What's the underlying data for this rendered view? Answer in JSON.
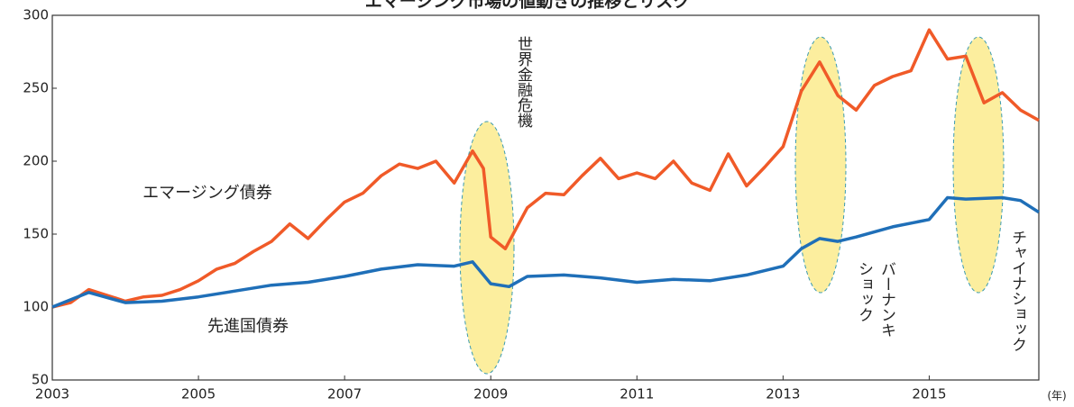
{
  "chart_data": {
    "type": "line",
    "title": "エマージング市場の値動きの推移とリスク",
    "xlim": [
      2003,
      2016.5
    ],
    "xticks": [
      2003,
      2005,
      2007,
      2009,
      2011,
      2013,
      2015
    ],
    "x_unit": "(年)",
    "ylim": [
      50,
      300
    ],
    "yticks": [
      50,
      100,
      150,
      200,
      250,
      300
    ],
    "series": [
      {
        "name": "エマージング債券",
        "color": "#f05a28",
        "x": [
          2003,
          2003.25,
          2003.5,
          2003.75,
          2004,
          2004.25,
          2004.5,
          2004.75,
          2005,
          2005.25,
          2005.5,
          2005.75,
          2006,
          2006.25,
          2006.5,
          2006.75,
          2007,
          2007.25,
          2007.5,
          2007.75,
          2008,
          2008.25,
          2008.5,
          2008.75,
          2008.9,
          2009,
          2009.2,
          2009.5,
          2009.75,
          2010,
          2010.25,
          2010.5,
          2010.75,
          2011,
          2011.25,
          2011.5,
          2011.75,
          2012,
          2012.25,
          2012.5,
          2012.75,
          2013,
          2013.25,
          2013.5,
          2013.75,
          2014,
          2014.25,
          2014.5,
          2014.75,
          2015,
          2015.25,
          2015.5,
          2015.75,
          2016,
          2016.25,
          2016.5
        ],
        "values": [
          100,
          103,
          112,
          108,
          104,
          107,
          108,
          112,
          118,
          126,
          130,
          138,
          145,
          157,
          147,
          160,
          172,
          178,
          190,
          198,
          195,
          200,
          185,
          207,
          195,
          148,
          140,
          168,
          178,
          177,
          190,
          202,
          188,
          192,
          188,
          200,
          185,
          180,
          205,
          183,
          196,
          210,
          248,
          268,
          245,
          235,
          252,
          258,
          262,
          290,
          270,
          272,
          240,
          247,
          235,
          228
        ]
      },
      {
        "name": "先進国債券",
        "color": "#1f6fb8",
        "x": [
          2003,
          2003.5,
          2004,
          2004.5,
          2005,
          2005.5,
          2006,
          2006.5,
          2007,
          2007.5,
          2008,
          2008.5,
          2008.75,
          2009,
          2009.25,
          2009.5,
          2010,
          2010.5,
          2011,
          2011.5,
          2012,
          2012.5,
          2013,
          2013.25,
          2013.5,
          2013.75,
          2014,
          2014.5,
          2015,
          2015.25,
          2015.5,
          2016,
          2016.25,
          2016.5
        ],
        "values": [
          100,
          110,
          103,
          104,
          107,
          111,
          115,
          117,
          121,
          126,
          129,
          128,
          131,
          116,
          114,
          121,
          122,
          120,
          117,
          119,
          118,
          122,
          128,
          140,
          147,
          145,
          148,
          155,
          160,
          175,
          174,
          175,
          173,
          165
        ]
      }
    ],
    "annotations": [
      {
        "text": "世界金融危機"
      },
      {
        "text": "バーナンキ"
      },
      {
        "text": "ショック"
      },
      {
        "text": "チャイナショック"
      }
    ]
  }
}
